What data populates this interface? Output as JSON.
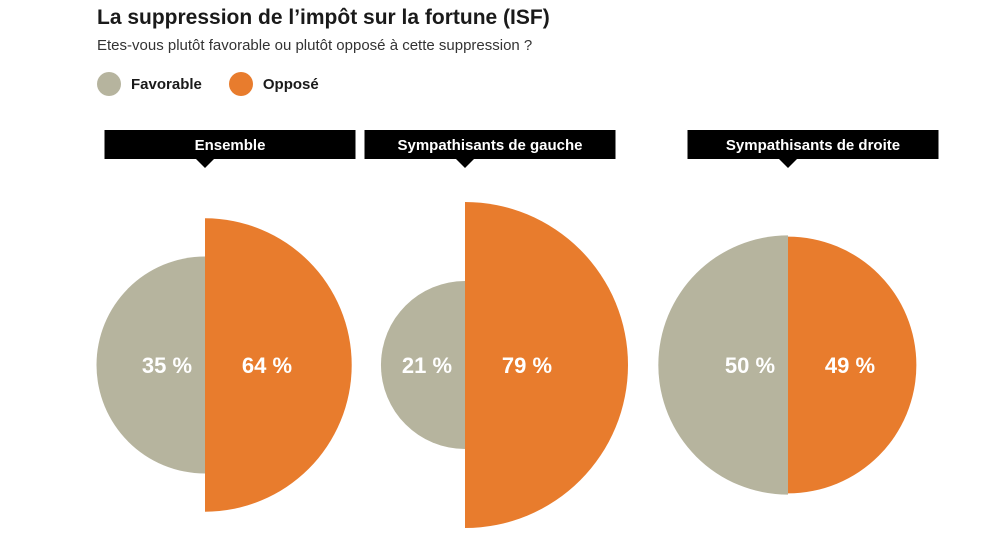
{
  "title": "La suppression de l’impôt sur la fortune (ISF)",
  "subtitle": "Etes-vous plutôt favorable ou plutôt opposé à cette suppression ?",
  "colors": {
    "favorable": "#b6b49e",
    "oppose": "#e87c2d",
    "header_bg": "#000000"
  },
  "chart_data": {
    "type": "pie",
    "variant": "half-circles scaled by share",
    "title": "La suppression de l’impôt sur la fortune (ISF)",
    "subtitle": "Etes-vous plutôt favorable ou plutôt opposé à cette suppression ?",
    "series_names": [
      "Favorable",
      "Opposé"
    ],
    "legend": {
      "placement": "top-left",
      "entries": [
        "Favorable",
        "Opposé"
      ]
    },
    "groups": [
      {
        "label": "Ensemble",
        "favorable": 35,
        "oppose": 64,
        "favorable_label": "35 %",
        "oppose_label": "64 %"
      },
      {
        "label": "Sympathisants de gauche",
        "favorable": 21,
        "oppose": 79,
        "favorable_label": "21 %",
        "oppose_label": "79 %"
      },
      {
        "label": "Sympathisants de droite",
        "favorable": 50,
        "oppose": 49,
        "favorable_label": "50 %",
        "oppose_label": "49 %"
      }
    ]
  }
}
